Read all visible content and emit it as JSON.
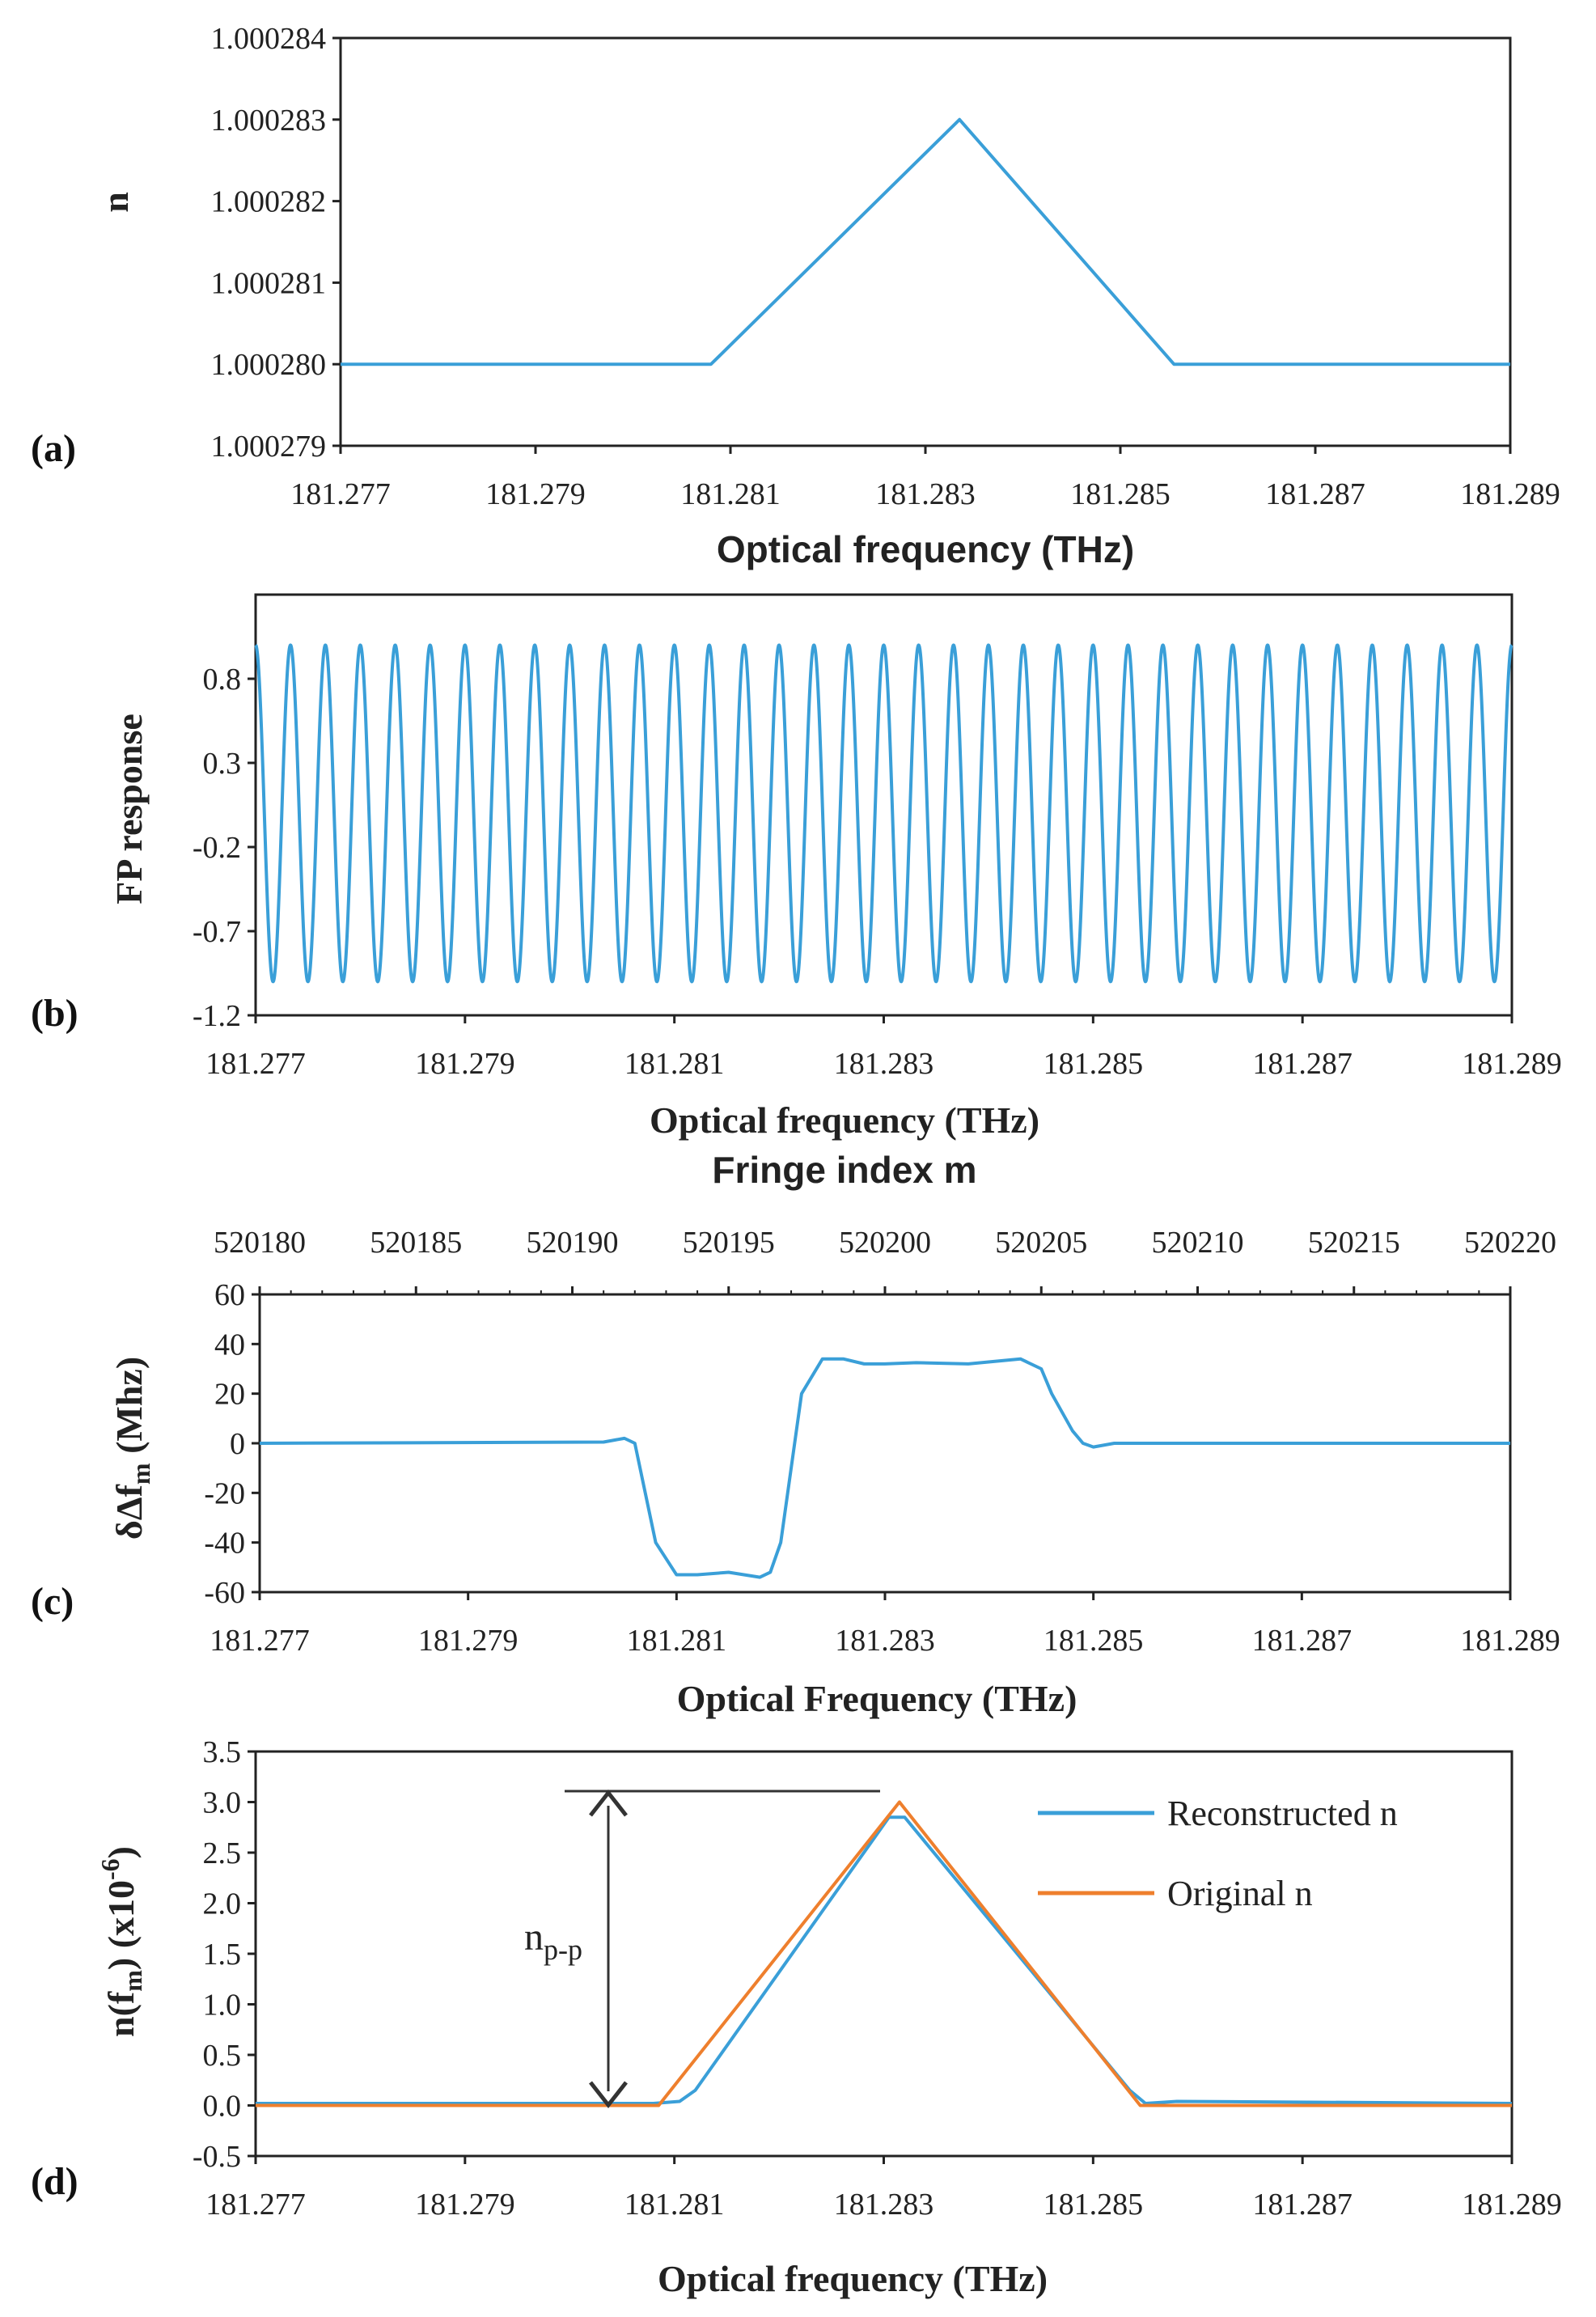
{
  "colors": {
    "blue": "#3a9fd8",
    "orange": "#ee7f2d",
    "axis": "#222222"
  },
  "chart_data": [
    {
      "panel": "(a)",
      "type": "line",
      "xlabel": "Optical frequency (THz)",
      "ylabel": "n",
      "xlim": [
        181.277,
        181.289
      ],
      "ylim": [
        1.000279,
        1.000284
      ],
      "x_ticks": [
        "181.277",
        "181.279",
        "181.281",
        "181.283",
        "181.285",
        "181.287",
        "181.289"
      ],
      "y_ticks": [
        "1.000279",
        "1.000280",
        "1.000281",
        "1.000282",
        "1.000283",
        "1.000284"
      ],
      "series": [
        {
          "color": "#3a9fd8",
          "x": [
            181.277,
            181.2808,
            181.28335,
            181.28555,
            181.289
          ],
          "y": [
            1.00028,
            1.00028,
            1.000283,
            1.00028,
            1.00028
          ]
        }
      ]
    },
    {
      "panel": "(b)",
      "type": "line",
      "xlabel": "Optical frequency (THz)",
      "ylabel": "FP response",
      "xlim": [
        181.277,
        181.289
      ],
      "ylim": [
        -1.2,
        1.3
      ],
      "x_ticks": [
        "181.277",
        "181.279",
        "181.281",
        "181.283",
        "181.285",
        "181.287",
        "181.289"
      ],
      "y_ticks": [
        "-1.2",
        "-0.7",
        "-0.2",
        "0.3",
        "0.8"
      ],
      "series": [
        {
          "color": "#3a9fd8",
          "form": "cosine",
          "amplitude": 1.0,
          "cycles": 36
        }
      ]
    },
    {
      "panel": "(c)",
      "type": "line",
      "xlabel": "Optical Frequency (THz)",
      "x2label": "Fringe index m",
      "ylabel": "δΔf",
      "ylabel_sub": "m",
      "ylabel_tail": " (Mhz)",
      "xlim": [
        181.277,
        181.289
      ],
      "x2lim": [
        520180,
        520220
      ],
      "ylim": [
        -60,
        60
      ],
      "x_ticks": [
        "181.277",
        "181.279",
        "181.281",
        "181.283",
        "181.285",
        "181.287",
        "181.289"
      ],
      "x2_ticks": [
        "520180",
        "520185",
        "520190",
        "520195",
        "520200",
        "520205",
        "520210",
        "520215",
        "520220"
      ],
      "y_ticks": [
        "-60",
        "-40",
        "-20",
        "0",
        "20",
        "40",
        "60"
      ],
      "series": [
        {
          "color": "#3a9fd8",
          "x": [
            181.277,
            181.2803,
            181.2805,
            181.2806,
            181.2807,
            181.2808,
            181.281,
            181.2812,
            181.2815,
            181.2818,
            181.2819,
            181.282,
            181.2822,
            181.2824,
            181.2826,
            181.2828,
            181.283,
            181.2833,
            181.2838,
            181.2843,
            181.2845,
            181.2846,
            181.2848,
            181.2849,
            181.285,
            181.2852,
            181.2855,
            181.289
          ],
          "y": [
            0,
            0.5,
            2,
            0,
            -20,
            -40,
            -53,
            -53,
            -52,
            -54,
            -52,
            -40,
            20,
            34,
            34,
            32,
            32,
            32.5,
            32,
            34,
            30,
            20,
            5,
            0,
            -1.5,
            0,
            0,
            0
          ]
        }
      ]
    },
    {
      "panel": "(d)",
      "type": "line",
      "xlabel": "Optical frequency (THz)",
      "ylabel": "n(f",
      "ylabel_sub": "m",
      "ylabel_tail": ") (x10",
      "ylabel_sup": "-6",
      "ylabel_end": ")",
      "xlim": [
        181.277,
        181.289
      ],
      "ylim": [
        -0.5,
        3.5
      ],
      "x_ticks": [
        "181.277",
        "181.279",
        "181.281",
        "181.283",
        "181.285",
        "181.287",
        "181.289"
      ],
      "y_ticks": [
        "-0.5",
        "0.0",
        "0.5",
        "1.0",
        "1.5",
        "2.0",
        "2.5",
        "3.0",
        "3.5"
      ],
      "annotation": {
        "text": "n",
        "sub": "p-p"
      },
      "series": [
        {
          "name": "Reconstructed n",
          "color": "#3a9fd8",
          "x": [
            181.277,
            181.2808,
            181.28105,
            181.2812,
            181.28305,
            181.2832,
            181.28535,
            181.2855,
            181.2858,
            181.289
          ],
          "y": [
            0.02,
            0.02,
            0.04,
            0.15,
            2.85,
            2.85,
            0.15,
            0.02,
            0.04,
            0.02
          ]
        },
        {
          "name": "Original n",
          "color": "#ee7f2d",
          "x": [
            181.277,
            181.28085,
            181.28315,
            181.28545,
            181.289
          ],
          "y": [
            0,
            0,
            3.0,
            0,
            0
          ]
        }
      ]
    }
  ]
}
